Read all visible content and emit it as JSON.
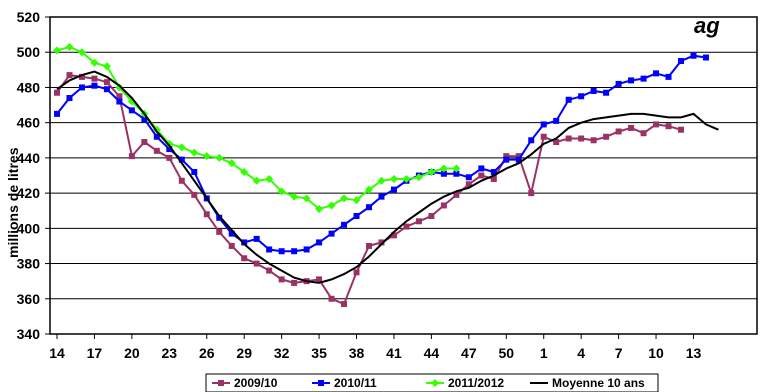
{
  "chart_data": {
    "type": "line",
    "title": "",
    "title_fragment": "ag",
    "xlabel": "",
    "ylabel": "millions de litres",
    "ylim": [
      340,
      520
    ],
    "yticks": [
      340,
      360,
      380,
      400,
      420,
      440,
      460,
      480,
      500,
      520
    ],
    "ytick_labels": [
      "340",
      "360",
      "380",
      "400",
      "420",
      "440",
      "460",
      "480",
      "500",
      "520"
    ],
    "x_tick_labels": [
      "14",
      "17",
      "20",
      "23",
      "26",
      "29",
      "32",
      "35",
      "38",
      "41",
      "44",
      "47",
      "50",
      "1",
      "4",
      "7",
      "10",
      "13"
    ],
    "grid": "horizontal",
    "legend_position": "bottom",
    "colors": {
      "s2009": "#993366",
      "s2010": "#0000ff",
      "s2011": "#33ff00",
      "avg": "#000000"
    },
    "series": [
      {
        "name": "2009/10",
        "color": "#993366",
        "marker": "square",
        "values": [
          477,
          487,
          486,
          485,
          483,
          475,
          441,
          449,
          444,
          440,
          427,
          419,
          408,
          398,
          390,
          383,
          380,
          376,
          371,
          369,
          370,
          371,
          360,
          357,
          375,
          390,
          392,
          396,
          401,
          404,
          407,
          413,
          419,
          425,
          430,
          428,
          441,
          441,
          420,
          452,
          449,
          451,
          451,
          450,
          452,
          455,
          457,
          454,
          459,
          458,
          456
        ]
      },
      {
        "name": "2010/11",
        "color": "#0000ff",
        "marker": "square",
        "values": [
          465,
          474,
          480,
          481,
          479,
          472,
          467,
          462,
          452,
          445,
          439,
          432,
          417,
          406,
          397,
          392,
          394,
          388,
          387,
          387,
          388,
          392,
          397,
          402,
          407,
          412,
          418,
          422,
          427,
          430,
          432,
          431,
          431,
          429,
          434,
          432,
          439,
          439,
          450,
          459,
          461,
          473,
          475,
          478,
          477,
          482,
          484,
          485,
          488,
          486,
          495,
          498,
          497
        ]
      },
      {
        "name": "2011/2012",
        "color": "#33ff00",
        "marker": "diamond",
        "values": [
          501,
          503,
          500,
          494,
          492,
          480,
          472,
          465,
          456,
          448,
          446,
          443,
          441,
          440,
          437,
          432,
          427,
          428,
          421,
          418,
          417,
          411,
          413,
          417,
          416,
          422,
          427,
          428,
          428,
          429,
          432,
          434,
          434
        ]
      },
      {
        "name": "Moyenne 10 ans",
        "color": "#000000",
        "marker": "none",
        "values": [
          479,
          484,
          487,
          489,
          486,
          481,
          474,
          465,
          455,
          447,
          437,
          427,
          417,
          407,
          399,
          391,
          385,
          380,
          376,
          372,
          370,
          369,
          371,
          374,
          378,
          384,
          391,
          398,
          404,
          409,
          414,
          418,
          421,
          423,
          427,
          430,
          434,
          437,
          442,
          448,
          451,
          457,
          460,
          462,
          463,
          464,
          465,
          465,
          464,
          463,
          463,
          465,
          459,
          456
        ]
      }
    ]
  }
}
